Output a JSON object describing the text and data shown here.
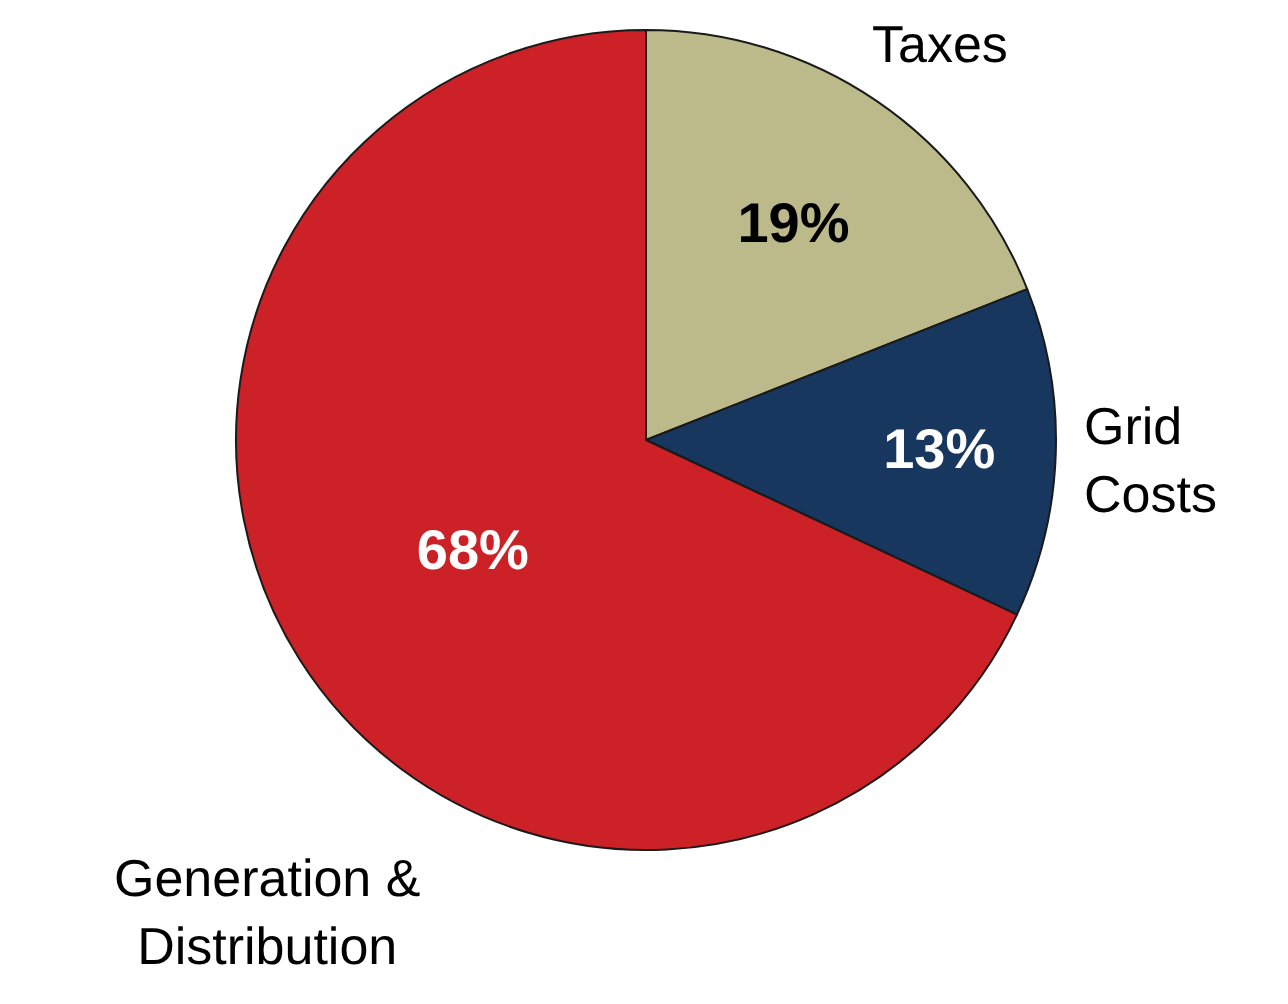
{
  "chart_data": {
    "type": "pie",
    "categories": [
      "Taxes",
      "Grid Costs",
      "Generation & Distribution"
    ],
    "values": [
      19,
      13,
      68
    ],
    "colors": [
      "#bcb98a",
      "#17375e",
      "#cc2127"
    ],
    "value_labels": [
      "19%",
      "13%",
      "68%"
    ],
    "legend": false
  }
}
